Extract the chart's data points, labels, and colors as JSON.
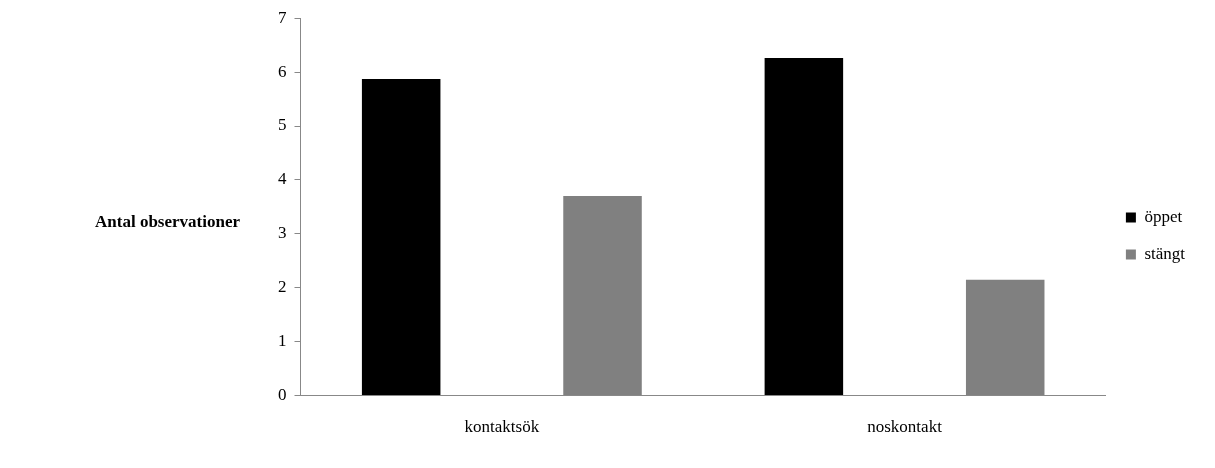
{
  "chart_data": {
    "type": "bar",
    "ylabel": "Antal observationer",
    "categories": [
      "kontaktsök",
      "noskontakt"
    ],
    "series": [
      {
        "name": "öppet",
        "color": "#000000",
        "values": [
          5.87,
          6.26
        ]
      },
      {
        "name": "stängt",
        "color": "#808080",
        "values": [
          3.7,
          2.15
        ]
      }
    ],
    "ylim": [
      0,
      7
    ],
    "yticks": [
      0,
      1,
      2,
      3,
      4,
      5,
      6,
      7
    ],
    "grid": false,
    "legend": "right"
  }
}
